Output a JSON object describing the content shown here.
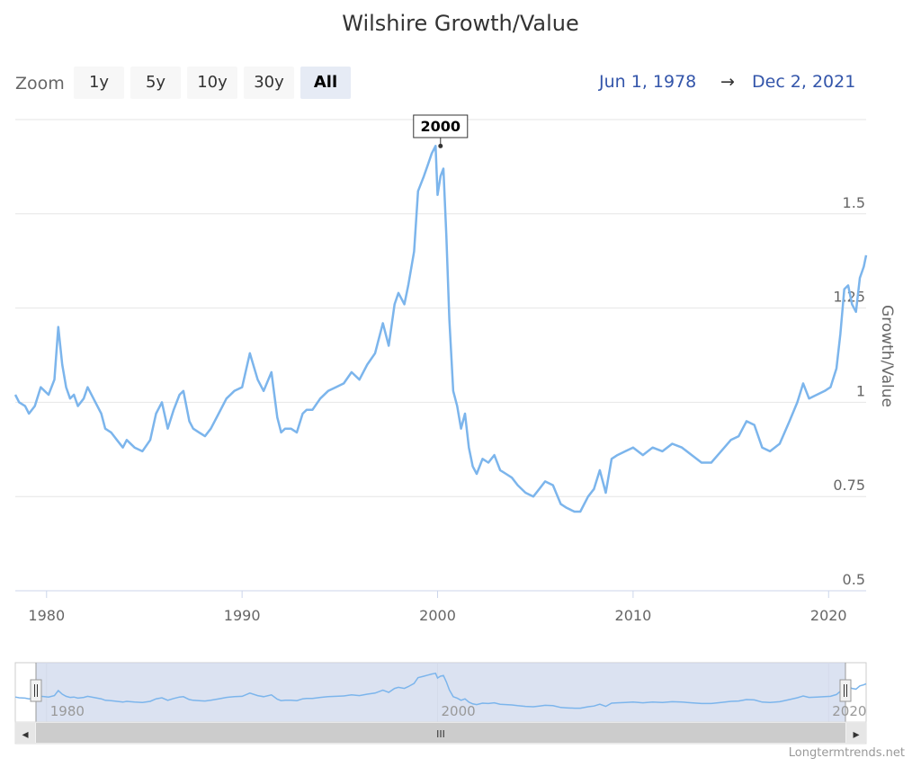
{
  "chart_data": {
    "type": "line",
    "title": "Wilshire Growth/Value",
    "ylabel": "Growth/Value",
    "xlabel": "",
    "x_range": [
      1978.4,
      2021.92
    ],
    "ylim": [
      0.5,
      1.75
    ],
    "yticks": [
      0.5,
      0.75,
      1,
      1.25,
      1.5
    ],
    "ytick_labels": [
      "0.5",
      "0.75",
      "1",
      "1.25",
      "1.5"
    ],
    "xticks": [
      1980,
      1990,
      2000,
      2010,
      2020
    ],
    "xtick_labels": [
      "1980",
      "1990",
      "2000",
      "2010",
      "2020"
    ],
    "grid": true,
    "legend": "none",
    "annotation": {
      "label": "2000",
      "x": 2000.15,
      "y": 1.68
    },
    "navigator_labels": [
      "1980",
      "2000",
      "2020"
    ],
    "line_color": "#7cb5ec",
    "series": [
      {
        "x": [
          1978.4,
          1978.6,
          1978.9,
          1979.1,
          1979.4,
          1979.7,
          1979.9,
          1980.1,
          1980.4,
          1980.6,
          1980.8,
          1981.0,
          1981.2,
          1981.4,
          1981.6,
          1981.9,
          1982.1,
          1982.5,
          1982.8,
          1983.0,
          1983.3,
          1983.6,
          1983.9,
          1984.1,
          1984.5,
          1984.9,
          1985.3,
          1985.6,
          1985.9,
          1986.2,
          1986.5,
          1986.8,
          1987.0,
          1987.3,
          1987.5,
          1987.8,
          1988.1,
          1988.4,
          1988.8,
          1989.2,
          1989.6,
          1990.0,
          1990.4,
          1990.8,
          1991.1,
          1991.5,
          1991.8,
          1992.0,
          1992.2,
          1992.5,
          1992.8,
          1993.1,
          1993.3,
          1993.6,
          1994.0,
          1994.4,
          1994.8,
          1995.2,
          1995.6,
          1996.0,
          1996.4,
          1996.8,
          1997.2,
          1997.5,
          1997.8,
          1998.0,
          1998.3,
          1998.5,
          1998.8,
          1999.0,
          1999.3,
          1999.5,
          1999.7,
          1999.9,
          2000.0,
          2000.15,
          2000.3,
          2000.45,
          2000.6,
          2000.8,
          2001.0,
          2001.2,
          2001.4,
          2001.6,
          2001.8,
          2002.0,
          2002.3,
          2002.6,
          2002.9,
          2003.2,
          2003.5,
          2003.8,
          2004.1,
          2004.5,
          2004.9,
          2005.2,
          2005.5,
          2005.9,
          2006.3,
          2006.6,
          2007.0,
          2007.3,
          2007.7,
          2008.0,
          2008.3,
          2008.6,
          2008.9,
          2009.2,
          2009.6,
          2010.0,
          2010.5,
          2011.0,
          2011.5,
          2012.0,
          2012.5,
          2013.0,
          2013.5,
          2014.0,
          2014.5,
          2015.0,
          2015.4,
          2015.8,
          2016.2,
          2016.6,
          2017.0,
          2017.5,
          2018.0,
          2018.4,
          2018.7,
          2019.0,
          2019.4,
          2019.8,
          2020.1,
          2020.4,
          2020.6,
          2020.8,
          2021.0,
          2021.2,
          2021.4,
          2021.6,
          2021.8,
          2021.92
        ],
        "y": [
          1.02,
          1.0,
          0.99,
          0.97,
          0.99,
          1.04,
          1.03,
          1.02,
          1.06,
          1.2,
          1.1,
          1.04,
          1.01,
          1.02,
          0.99,
          1.01,
          1.04,
          1.0,
          0.97,
          0.93,
          0.92,
          0.9,
          0.88,
          0.9,
          0.88,
          0.87,
          0.9,
          0.97,
          1.0,
          0.93,
          0.98,
          1.02,
          1.03,
          0.95,
          0.93,
          0.92,
          0.91,
          0.93,
          0.97,
          1.01,
          1.03,
          1.04,
          1.13,
          1.06,
          1.03,
          1.08,
          0.96,
          0.92,
          0.93,
          0.93,
          0.92,
          0.97,
          0.98,
          0.98,
          1.01,
          1.03,
          1.04,
          1.05,
          1.08,
          1.06,
          1.1,
          1.13,
          1.21,
          1.15,
          1.26,
          1.29,
          1.26,
          1.31,
          1.4,
          1.56,
          1.6,
          1.63,
          1.66,
          1.68,
          1.55,
          1.6,
          1.62,
          1.44,
          1.22,
          1.03,
          0.99,
          0.93,
          0.97,
          0.88,
          0.83,
          0.81,
          0.85,
          0.84,
          0.86,
          0.82,
          0.81,
          0.8,
          0.78,
          0.76,
          0.75,
          0.77,
          0.79,
          0.78,
          0.73,
          0.72,
          0.71,
          0.71,
          0.75,
          0.77,
          0.82,
          0.76,
          0.85,
          0.86,
          0.87,
          0.88,
          0.86,
          0.88,
          0.87,
          0.89,
          0.88,
          0.86,
          0.84,
          0.84,
          0.87,
          0.9,
          0.91,
          0.95,
          0.94,
          0.88,
          0.87,
          0.89,
          0.95,
          1.0,
          1.05,
          1.01,
          1.02,
          1.03,
          1.04,
          1.09,
          1.18,
          1.3,
          1.31,
          1.26,
          1.24,
          1.33,
          1.36,
          1.39
        ]
      }
    ]
  },
  "zoom": {
    "label": "Zoom",
    "buttons": [
      "1y",
      "5y",
      "10y",
      "30y",
      "All"
    ],
    "active": "All"
  },
  "range": {
    "from": "Jun 1, 1978",
    "arrow": "→",
    "to": "Dec 2, 2021"
  },
  "navigator": {
    "scroll_left_icon": "◂",
    "scroll_right_icon": "▸",
    "grip": "III",
    "handle_grip": "II"
  },
  "credit": "Longtermtrends.net"
}
